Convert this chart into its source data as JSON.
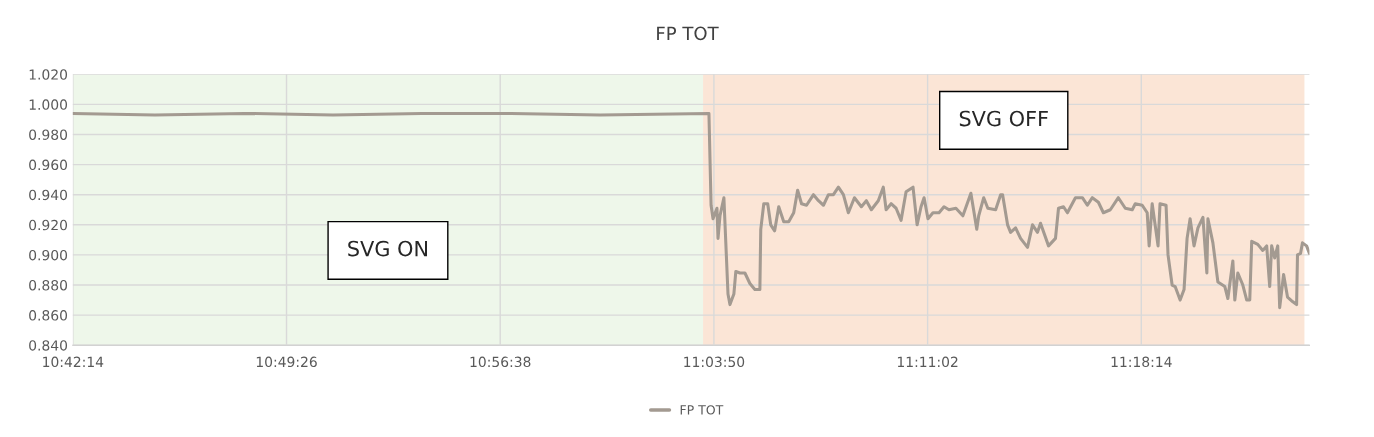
{
  "chart_data": {
    "type": "line",
    "title": "FP TOT",
    "series": [
      {
        "name": "FP TOT",
        "color": "#a39a91",
        "x": [
          10.7039,
          10.75,
          10.8,
          10.85,
          10.9,
          10.95,
          11.0,
          11.0611,
          11.0623,
          11.0634,
          11.0656,
          11.0662,
          11.0673,
          11.0695,
          11.0718,
          11.0729,
          11.0751,
          11.0762,
          11.0785,
          11.0813,
          11.0841,
          11.0869,
          11.0897,
          11.0902,
          11.0919,
          11.0941,
          11.0958,
          11.098,
          11.1003,
          11.1031,
          11.1059,
          11.1087,
          11.1109,
          11.1131,
          11.1159,
          11.1198,
          11.1226,
          11.1254,
          11.1282,
          11.131,
          11.1338,
          11.1366,
          11.1394,
          11.1428,
          11.1467,
          11.1495,
          11.1523,
          11.1562,
          11.159,
          11.1606,
          11.1634,
          11.1662,
          11.169,
          11.1718,
          11.1757,
          11.178,
          11.1802,
          11.1819,
          11.1841,
          11.1869,
          11.1903,
          11.1931,
          11.1959,
          11.1998,
          11.2037,
          11.2082,
          11.2115,
          11.2126,
          11.2154,
          11.2177,
          11.2221,
          11.2249,
          11.226,
          11.2288,
          11.2305,
          11.2333,
          11.2361,
          11.24,
          11.2428,
          11.2456,
          11.2473,
          11.2518,
          11.2557,
          11.2574,
          11.2602,
          11.2624,
          11.2669,
          11.2708,
          11.2736,
          11.2764,
          11.2798,
          11.2826,
          11.2865,
          11.291,
          11.2949,
          11.2988,
          11.3005,
          11.3044,
          11.3072,
          11.3083,
          11.31,
          11.3133,
          11.3144,
          11.3178,
          11.3189,
          11.3212,
          11.3229,
          11.3257,
          11.3279,
          11.3296,
          11.3313,
          11.3335,
          11.3357,
          11.3385,
          11.3407,
          11.3413,
          11.3441,
          11.3469,
          11.3508,
          11.3525,
          11.3553,
          11.3564,
          11.3581,
          11.3609,
          11.3631,
          11.3648,
          11.3659,
          11.3693,
          11.3721,
          11.3743,
          11.376,
          11.3771,
          11.3788,
          11.3805,
          11.3816,
          11.3838,
          11.386,
          11.3888,
          11.3911,
          11.3916,
          11.3933,
          11.3944,
          11.3967,
          11.3983
        ],
        "values": [
          0.994,
          0.993,
          0.994,
          0.993,
          0.994,
          0.994,
          0.993,
          0.994,
          0.933,
          0.924,
          0.931,
          0.911,
          0.926,
          0.938,
          0.874,
          0.867,
          0.874,
          0.889,
          0.888,
          0.888,
          0.881,
          0.877,
          0.877,
          0.917,
          0.934,
          0.934,
          0.92,
          0.916,
          0.932,
          0.922,
          0.922,
          0.928,
          0.943,
          0.934,
          0.933,
          0.94,
          0.936,
          0.933,
          0.94,
          0.94,
          0.945,
          0.94,
          0.928,
          0.938,
          0.932,
          0.936,
          0.93,
          0.936,
          0.945,
          0.93,
          0.934,
          0.931,
          0.923,
          0.942,
          0.945,
          0.92,
          0.932,
          0.938,
          0.924,
          0.928,
          0.928,
          0.932,
          0.93,
          0.931,
          0.926,
          0.941,
          0.917,
          0.926,
          0.938,
          0.931,
          0.93,
          0.94,
          0.94,
          0.92,
          0.915,
          0.918,
          0.911,
          0.905,
          0.92,
          0.915,
          0.921,
          0.906,
          0.911,
          0.931,
          0.932,
          0.928,
          0.938,
          0.938,
          0.933,
          0.938,
          0.935,
          0.928,
          0.93,
          0.938,
          0.931,
          0.93,
          0.934,
          0.933,
          0.928,
          0.906,
          0.934,
          0.906,
          0.934,
          0.933,
          0.9,
          0.88,
          0.879,
          0.87,
          0.877,
          0.911,
          0.924,
          0.906,
          0.918,
          0.925,
          0.888,
          0.924,
          0.908,
          0.882,
          0.879,
          0.871,
          0.896,
          0.87,
          0.888,
          0.88,
          0.87,
          0.87,
          0.909,
          0.907,
          0.903,
          0.906,
          0.879,
          0.906,
          0.898,
          0.906,
          0.865,
          0.887,
          0.872,
          0.869,
          0.867,
          0.9,
          0.901,
          0.908,
          0.906,
          0.901
        ]
      }
    ],
    "xlim": [
      10.70389,
      11.3983
    ],
    "xticks": [
      {
        "value": 10.70389,
        "label": "10:42:14"
      },
      {
        "value": 10.82389,
        "label": "10:49:26"
      },
      {
        "value": 10.94389,
        "label": "10:56:38"
      },
      {
        "value": 11.06389,
        "label": "11:03:50"
      },
      {
        "value": 11.18389,
        "label": "11:11:02"
      },
      {
        "value": 11.30389,
        "label": "11:18:14"
      }
    ],
    "ylim": [
      0.84,
      1.02
    ],
    "yticks": [
      {
        "value": 0.84,
        "label": "0.840"
      },
      {
        "value": 0.86,
        "label": "0.860"
      },
      {
        "value": 0.88,
        "label": "0.880"
      },
      {
        "value": 0.9,
        "label": "0.900"
      },
      {
        "value": 0.92,
        "label": "0.920"
      },
      {
        "value": 0.94,
        "label": "0.940"
      },
      {
        "value": 0.96,
        "label": "0.960"
      },
      {
        "value": 0.98,
        "label": "0.980"
      },
      {
        "value": 1.0,
        "label": "1.000"
      },
      {
        "value": 1.02,
        "label": "1.020"
      }
    ],
    "bands": [
      {
        "axis": "x",
        "from": 10.70389,
        "to": 11.0578,
        "label": "SVG ON",
        "color": "#eef7ea"
      },
      {
        "axis": "x",
        "from": 11.0578,
        "to": 11.3955,
        "label": "SVG OFF",
        "color": "#fbe5d6"
      }
    ],
    "grid": true,
    "legend": "bottom",
    "marker": "none",
    "line_style": "solid"
  }
}
